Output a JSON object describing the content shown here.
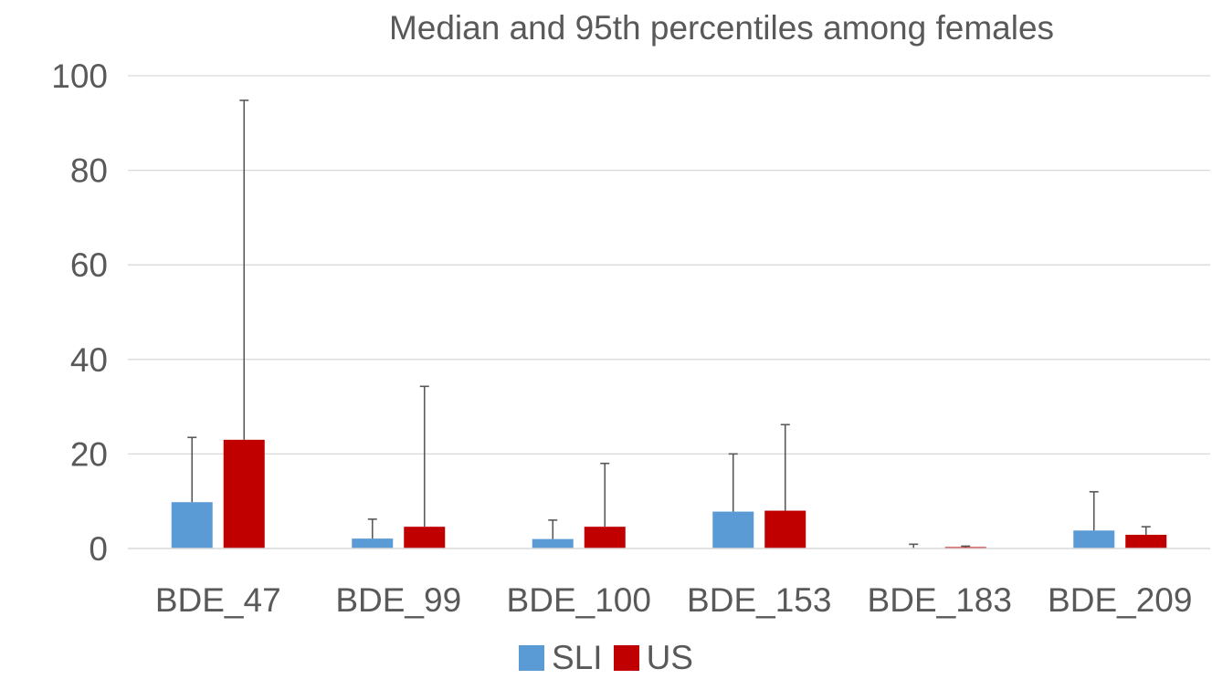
{
  "chart_data": {
    "type": "bar",
    "title": "Median and 95th percentiles among females",
    "xlabel": "",
    "ylabel": "",
    "categories": [
      "BDE_47",
      "BDE_99",
      "BDE_100",
      "BDE_153",
      "BDE_183",
      "BDE_209"
    ],
    "yticks": [
      "0",
      "20",
      "40",
      "60",
      "80",
      "100"
    ],
    "ylim": [
      0,
      100
    ],
    "grid": true,
    "legend_position": "bottom",
    "series": [
      {
        "name": "SLI",
        "color": "#5B9BD5",
        "values": [
          9.8,
          2.1,
          2.0,
          7.8,
          0.1,
          3.8
        ],
        "percentile95": [
          23.5,
          6.2,
          6.0,
          20.0,
          0.9,
          12.0
        ]
      },
      {
        "name": "US",
        "color": "#C00000",
        "values": [
          23.0,
          4.6,
          4.6,
          8.0,
          0.3,
          2.9
        ],
        "percentile95": [
          94.8,
          34.3,
          18.0,
          26.2,
          0.5,
          4.6
        ]
      }
    ]
  }
}
